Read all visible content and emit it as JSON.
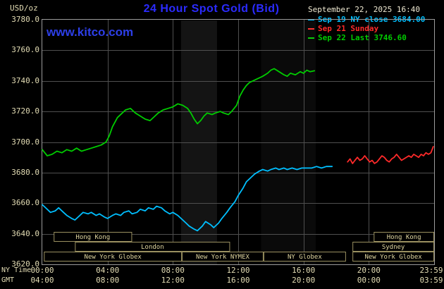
{
  "colors": {
    "background": "#000000",
    "title_blue": "#2b2bff",
    "watermark_blue": "#2d3fe8",
    "axis_tan": "#e3dcb4",
    "datetime_text": "#efe9d2",
    "grid_gray": "#4f4f4f",
    "plot_border": "#9c9c9c",
    "session_border": "#9a9060",
    "session_text": "#e0d6a0",
    "cyan_series": "#00bfff",
    "red_series": "#ff2a2a",
    "green_series": "#00cc00"
  },
  "header": {
    "unit_label": "USD/oz",
    "title": "24 Hour Spot Gold (Bid)",
    "datetime": "September 22, 2025 16:40",
    "watermark": "www.kitco.com"
  },
  "legend": {
    "items": [
      {
        "label": "Sep 19 NY close 3684.00",
        "color": "#00bfff"
      },
      {
        "label": "Sep 21 Sunday",
        "color": "#ff2a2a"
      },
      {
        "label": "Sep 22 Last 3746.60",
        "color": "#00cc00"
      }
    ]
  },
  "axes": {
    "y_ticks": [
      "3780.0",
      "3760.0",
      "3740.0",
      "3720.0",
      "3700.0",
      "3680.0",
      "3660.0",
      "3640.0",
      "3620.0"
    ],
    "y_tick_step": 20,
    "x_row1_caption": "NY Time",
    "x_row2_caption": "GMT",
    "x_row1_ticks": [
      "00:00",
      "04:00",
      "08:00",
      "12:00",
      "16:00",
      "20:00",
      "23:59"
    ],
    "x_row2_ticks": [
      "04:00",
      "08:00",
      "12:00",
      "16:00",
      "20:00",
      "00:00",
      "03:59"
    ]
  },
  "sessions": [
    {
      "label": "Hong Kong",
      "row": 0,
      "start": 0.7,
      "end": 5.5
    },
    {
      "label": "Hong Kong",
      "row": 0,
      "start": 20.3,
      "end": 24
    },
    {
      "label": "London",
      "row": 1,
      "start": 2.0,
      "end": 11.5
    },
    {
      "label": "Sydney",
      "row": 1,
      "start": 19.0,
      "end": 24
    },
    {
      "label": "New York Globex",
      "row": 2,
      "start": 0.1,
      "end": 8.55
    },
    {
      "label": "New York NYMEX",
      "row": 2,
      "start": 8.55,
      "end": 13.55
    },
    {
      "label": "NY Globex",
      "row": 2,
      "start": 13.55,
      "end": 18.6
    },
    {
      "label": "New York Globex",
      "row": 2,
      "start": 19.0,
      "end": 24
    }
  ],
  "chart_data": {
    "type": "line",
    "title": "24 Hour Spot Gold (Bid)",
    "xlabel": "NY Time",
    "ylabel": "USD/oz",
    "xlim": [
      0,
      24
    ],
    "ylim": [
      3620,
      3780
    ],
    "grid": true,
    "x_tick_hours": [
      0,
      4,
      8,
      12,
      16,
      20,
      23.983
    ],
    "bands": [
      {
        "start": 8.5,
        "end": 10.7,
        "alpha": 0.08
      },
      {
        "start": 13.4,
        "end": 16.75,
        "alpha": 0.04
      }
    ],
    "series": [
      {
        "name": "Sep 19 NY close",
        "color": "#00bfff",
        "close_value": 3684.0,
        "points": [
          [
            0,
            3659
          ],
          [
            0.3,
            3656
          ],
          [
            0.5,
            3654
          ],
          [
            0.8,
            3655
          ],
          [
            1.0,
            3657
          ],
          [
            1.3,
            3654
          ],
          [
            1.5,
            3652
          ],
          [
            1.8,
            3650
          ],
          [
            2.0,
            3649
          ],
          [
            2.3,
            3652
          ],
          [
            2.5,
            3654
          ],
          [
            2.8,
            3653
          ],
          [
            3.0,
            3654
          ],
          [
            3.3,
            3652
          ],
          [
            3.5,
            3653
          ],
          [
            3.8,
            3651
          ],
          [
            4.0,
            3650
          ],
          [
            4.3,
            3652
          ],
          [
            4.5,
            3653
          ],
          [
            4.8,
            3652
          ],
          [
            5.0,
            3654
          ],
          [
            5.3,
            3655
          ],
          [
            5.5,
            3653
          ],
          [
            5.8,
            3654
          ],
          [
            6.0,
            3656
          ],
          [
            6.3,
            3655
          ],
          [
            6.5,
            3657
          ],
          [
            6.8,
            3656
          ],
          [
            7.0,
            3658
          ],
          [
            7.3,
            3657
          ],
          [
            7.5,
            3655
          ],
          [
            7.8,
            3653
          ],
          [
            8.0,
            3654
          ],
          [
            8.3,
            3652
          ],
          [
            8.5,
            3650
          ],
          [
            8.8,
            3647
          ],
          [
            9.0,
            3645
          ],
          [
            9.3,
            3643
          ],
          [
            9.5,
            3642
          ],
          [
            9.8,
            3645
          ],
          [
            10.0,
            3648
          ],
          [
            10.3,
            3646
          ],
          [
            10.5,
            3644
          ],
          [
            10.8,
            3647
          ],
          [
            11.0,
            3650
          ],
          [
            11.3,
            3654
          ],
          [
            11.5,
            3657
          ],
          [
            11.8,
            3661
          ],
          [
            12.0,
            3665
          ],
          [
            12.3,
            3670
          ],
          [
            12.5,
            3674
          ],
          [
            12.8,
            3677
          ],
          [
            13.0,
            3679
          ],
          [
            13.3,
            3681
          ],
          [
            13.5,
            3682
          ],
          [
            13.8,
            3681
          ],
          [
            14.0,
            3682
          ],
          [
            14.3,
            3683
          ],
          [
            14.5,
            3682
          ],
          [
            14.8,
            3683
          ],
          [
            15.0,
            3682
          ],
          [
            15.3,
            3683
          ],
          [
            15.6,
            3682
          ],
          [
            15.9,
            3683
          ],
          [
            16.2,
            3683
          ],
          [
            16.5,
            3683
          ],
          [
            16.8,
            3684
          ],
          [
            17.1,
            3683
          ],
          [
            17.4,
            3684
          ],
          [
            17.75,
            3684
          ]
        ]
      },
      {
        "name": "Sep 21 Sunday",
        "color": "#ff2a2a",
        "points": [
          [
            18.7,
            3687
          ],
          [
            18.85,
            3689
          ],
          [
            19.0,
            3686
          ],
          [
            19.15,
            3688
          ],
          [
            19.3,
            3690
          ],
          [
            19.45,
            3688
          ],
          [
            19.6,
            3689
          ],
          [
            19.75,
            3691
          ],
          [
            19.9,
            3689
          ],
          [
            20.05,
            3687
          ],
          [
            20.2,
            3688
          ],
          [
            20.35,
            3686
          ],
          [
            20.5,
            3687
          ],
          [
            20.65,
            3689
          ],
          [
            20.8,
            3691
          ],
          [
            20.95,
            3690
          ],
          [
            21.1,
            3688
          ],
          [
            21.25,
            3687
          ],
          [
            21.4,
            3689
          ],
          [
            21.55,
            3690
          ],
          [
            21.7,
            3692
          ],
          [
            21.85,
            3690
          ],
          [
            22.0,
            3688
          ],
          [
            22.15,
            3689
          ],
          [
            22.3,
            3690
          ],
          [
            22.45,
            3691
          ],
          [
            22.6,
            3690
          ],
          [
            22.75,
            3692
          ],
          [
            22.9,
            3691
          ],
          [
            23.05,
            3690
          ],
          [
            23.2,
            3692
          ],
          [
            23.35,
            3691
          ],
          [
            23.5,
            3693
          ],
          [
            23.65,
            3692
          ],
          [
            23.8,
            3693
          ],
          [
            23.95,
            3697
          ]
        ]
      },
      {
        "name": "Sep 22 Last",
        "color": "#00cc00",
        "last_value": 3746.6,
        "points": [
          [
            0,
            3695
          ],
          [
            0.3,
            3691
          ],
          [
            0.6,
            3692
          ],
          [
            0.9,
            3694
          ],
          [
            1.2,
            3693
          ],
          [
            1.5,
            3695
          ],
          [
            1.8,
            3694
          ],
          [
            2.1,
            3696
          ],
          [
            2.4,
            3694
          ],
          [
            2.7,
            3695
          ],
          [
            3.0,
            3696
          ],
          [
            3.3,
            3697
          ],
          [
            3.6,
            3698
          ],
          [
            3.9,
            3700
          ],
          [
            4.1,
            3704
          ],
          [
            4.3,
            3710
          ],
          [
            4.6,
            3716
          ],
          [
            4.9,
            3719
          ],
          [
            5.1,
            3721
          ],
          [
            5.4,
            3722
          ],
          [
            5.7,
            3719
          ],
          [
            6.0,
            3717
          ],
          [
            6.3,
            3715
          ],
          [
            6.6,
            3714
          ],
          [
            6.9,
            3717
          ],
          [
            7.1,
            3719
          ],
          [
            7.4,
            3721
          ],
          [
            7.7,
            3722
          ],
          [
            8.0,
            3723
          ],
          [
            8.3,
            3725
          ],
          [
            8.6,
            3724
          ],
          [
            8.9,
            3722
          ],
          [
            9.1,
            3719
          ],
          [
            9.3,
            3715
          ],
          [
            9.5,
            3712
          ],
          [
            9.7,
            3714
          ],
          [
            9.9,
            3717
          ],
          [
            10.1,
            3719
          ],
          [
            10.4,
            3718
          ],
          [
            10.6,
            3719
          ],
          [
            10.9,
            3720
          ],
          [
            11.1,
            3719
          ],
          [
            11.4,
            3718
          ],
          [
            11.6,
            3720
          ],
          [
            11.9,
            3724
          ],
          [
            12.1,
            3730
          ],
          [
            12.3,
            3734
          ],
          [
            12.5,
            3737
          ],
          [
            12.7,
            3739
          ],
          [
            12.9,
            3740
          ],
          [
            13.1,
            3741
          ],
          [
            13.3,
            3742
          ],
          [
            13.5,
            3743
          ],
          [
            13.8,
            3745
          ],
          [
            14.0,
            3747
          ],
          [
            14.2,
            3748
          ],
          [
            14.5,
            3746
          ],
          [
            14.8,
            3744
          ],
          [
            15.0,
            3743
          ],
          [
            15.2,
            3745
          ],
          [
            15.5,
            3744
          ],
          [
            15.8,
            3746
          ],
          [
            16.0,
            3745
          ],
          [
            16.2,
            3747
          ],
          [
            16.4,
            3746
          ],
          [
            16.67,
            3746.6
          ]
        ]
      }
    ]
  }
}
